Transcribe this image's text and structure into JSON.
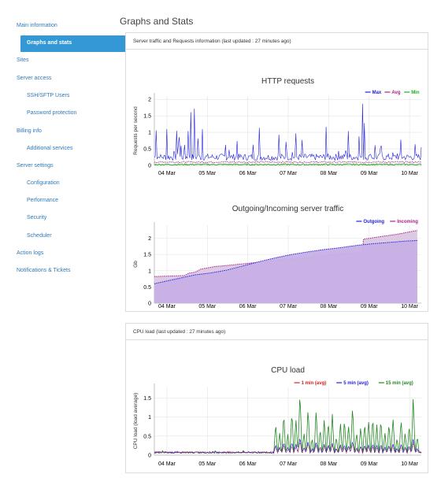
{
  "sidebar": {
    "items": [
      {
        "label": "Main information",
        "level": 0
      },
      {
        "label": "Graphs and stats",
        "level": 1,
        "active": true
      },
      {
        "label": "Sites",
        "level": 0
      },
      {
        "label": "Server access",
        "level": 0
      },
      {
        "label": "SSH/SFTP Users",
        "level": 1
      },
      {
        "label": "Password protection",
        "level": 1
      },
      {
        "label": "Billing info",
        "level": 0
      },
      {
        "label": "Additional services",
        "level": 1
      },
      {
        "label": "Server settings",
        "level": 0
      },
      {
        "label": "Configuration",
        "level": 1
      },
      {
        "label": "Performance",
        "level": 1
      },
      {
        "label": "Security",
        "level": 1
      },
      {
        "label": "Scheduler",
        "level": 1
      },
      {
        "label": "Action logs",
        "level": 0
      },
      {
        "label": "Notifications & Tickets",
        "level": 0
      }
    ]
  },
  "page": {
    "title": "Graphs and Stats"
  },
  "panels": {
    "traffic": {
      "heading": "Server traffic and Requests information",
      "updated": "(last updated : 27 minutes ago)"
    },
    "cpu": {
      "heading": "CPU load",
      "updated": "(last updated : 27 minutes ago)"
    }
  },
  "colors": {
    "accent": "#3598d6",
    "link": "#2f79b9",
    "max": "#2222dd",
    "avg": "#aa2288",
    "min": "#22aa22",
    "outgoing": "#2222dd",
    "incoming": "#aa2288",
    "cpu1": "#dd2222",
    "cpu5": "#2222dd",
    "cpu15": "#228822"
  },
  "chart_data": [
    {
      "type": "line",
      "title": "HTTP requests",
      "ylabel": "Requests per second",
      "xlabel": "",
      "x_ticks": [
        "04 Mar",
        "05 Mar",
        "06 Mar",
        "07 Mar",
        "08 Mar",
        "09 Mar",
        "10 Mar"
      ],
      "x_range": [
        "03 Mar 16:00",
        "10 Mar 19:00"
      ],
      "ylim": [
        0,
        2.1
      ],
      "y_ticks": [
        0,
        0.5,
        1,
        1.5,
        2
      ],
      "grid": true,
      "legend": "top-right",
      "series": [
        {
          "name": "Max",
          "color": "#2222dd",
          "baseline": 0.25,
          "spikes": [
            [
              0.05,
              1.3
            ],
            [
              0.14,
              0.55
            ],
            [
              0.25,
              0.5
            ],
            [
              0.31,
              1.18
            ],
            [
              0.41,
              0.48
            ],
            [
              0.48,
              0.6
            ],
            [
              0.55,
              1.05
            ],
            [
              0.59,
              0.8
            ],
            [
              0.61,
              1.1
            ],
            [
              0.66,
              0.6
            ],
            [
              0.75,
              0.7
            ],
            [
              0.84,
              1.2
            ],
            [
              0.87,
              0.5
            ],
            [
              0.91,
              1.93
            ],
            [
              0.99,
              1.72
            ],
            [
              1.08,
              0.9
            ],
            [
              1.19,
              1.18
            ],
            [
              1.33,
              0.55
            ],
            [
              1.53,
              0.58
            ],
            [
              1.75,
              1.02
            ],
            [
              1.85,
              0.55
            ],
            [
              2.05,
              0.9
            ],
            [
              2.45,
              0.95
            ],
            [
              2.6,
              1.3
            ],
            [
              3.09,
              1.33
            ],
            [
              3.25,
              0.95
            ],
            [
              3.4,
              0.8
            ],
            [
              3.5,
              1.05
            ],
            [
              3.65,
              0.85
            ],
            [
              4.15,
              0.5
            ],
            [
              4.25,
              1.33
            ],
            [
              4.55,
              0.6
            ],
            [
              4.74,
              0.85
            ],
            [
              4.8,
              1.2
            ],
            [
              5.05,
              1.28
            ],
            [
              5.15,
              1.95
            ],
            [
              5.2,
              1.6
            ],
            [
              5.35,
              0.5
            ],
            [
              5.45,
              0.85
            ],
            [
              5.6,
              1.0
            ],
            [
              5.75,
              0.6
            ],
            [
              5.9,
              0.55
            ],
            [
              6.0,
              0.6
            ],
            [
              6.1,
              1.02
            ],
            [
              6.28,
              0.4
            ],
            [
              6.45,
              0.8
            ],
            [
              6.6,
              0.55
            ]
          ]
        },
        {
          "name": "Avg",
          "color": "#aa2288",
          "baseline": 0.1
        },
        {
          "name": "Min",
          "color": "#22aa22",
          "baseline": 0.03
        }
      ]
    },
    {
      "type": "area",
      "title": "Outgoing/Incoming server traffic",
      "ylabel": "Gb",
      "xlabel": "",
      "x_ticks": [
        "04 Mar",
        "05 Mar",
        "06 Mar",
        "07 Mar",
        "08 Mar",
        "09 Mar",
        "10 Mar"
      ],
      "x_range": [
        "03 Mar 16:00",
        "10 Mar 19:00"
      ],
      "ylim": [
        0,
        2.4
      ],
      "y_ticks": [
        0,
        0.5,
        1,
        1.5,
        2
      ],
      "grid": true,
      "legend": "top-right",
      "series": [
        {
          "name": "Outgoing",
          "color": "#2222dd",
          "points": [
            [
              0.0,
              0.6
            ],
            [
              0.3,
              0.68
            ],
            [
              0.6,
              0.76
            ],
            [
              1.0,
              0.87
            ],
            [
              1.4,
              0.93
            ],
            [
              1.8,
              1.02
            ],
            [
              2.2,
              1.15
            ],
            [
              2.6,
              1.28
            ],
            [
              3.0,
              1.4
            ],
            [
              3.4,
              1.5
            ],
            [
              3.8,
              1.58
            ],
            [
              4.2,
              1.65
            ],
            [
              4.6,
              1.71
            ],
            [
              5.0,
              1.78
            ],
            [
              5.4,
              1.83
            ],
            [
              5.8,
              1.87
            ],
            [
              6.2,
              1.91
            ],
            [
              6.5,
              1.93
            ]
          ]
        },
        {
          "name": "Incoming",
          "color": "#aa2288",
          "points": [
            [
              0.0,
              0.82
            ],
            [
              0.75,
              0.85
            ],
            [
              0.85,
              0.92
            ],
            [
              1.0,
              0.95
            ],
            [
              1.15,
              1.05
            ],
            [
              1.3,
              1.08
            ],
            [
              1.5,
              1.13
            ],
            [
              1.7,
              1.15
            ],
            [
              2.5,
              1.25
            ],
            [
              3.3,
              1.35
            ],
            [
              4.2,
              1.45
            ],
            [
              4.5,
              1.5
            ],
            [
              5.0,
              1.55
            ],
            [
              5.14,
              1.56
            ],
            [
              5.17,
              1.97
            ],
            [
              5.6,
              2.05
            ],
            [
              6.0,
              2.12
            ],
            [
              6.5,
              2.24
            ]
          ]
        }
      ]
    },
    {
      "type": "line",
      "title": "CPU load",
      "ylabel": "CPU load (load average)",
      "xlabel": "",
      "x_ticks": [
        "04 Mar",
        "05 Mar",
        "06 Mar",
        "07 Mar",
        "08 Mar",
        "09 Mar",
        "10 Mar"
      ],
      "x_range": [
        "03 Mar 16:00",
        "10 Mar 19:00"
      ],
      "ylim": [
        0,
        1.8
      ],
      "y_ticks": [
        0,
        0.5,
        1,
        1.5
      ],
      "grid": true,
      "legend": "top-right",
      "series": [
        {
          "name": "1 min (avg)",
          "color": "#dd2222"
        },
        {
          "name": "5 min (avg)",
          "color": "#2222dd"
        },
        {
          "name": "15 min (avg)",
          "color": "#228822",
          "baseline": 0.05,
          "spikes": [
            [
              0.05,
              0.1
            ],
            [
              0.2,
              0.12
            ],
            [
              0.4,
              0.08
            ],
            [
              0.7,
              0.1
            ],
            [
              1.2,
              0.1
            ],
            [
              1.5,
              0.12
            ],
            [
              1.8,
              0.08
            ],
            [
              2.2,
              0.12
            ],
            [
              2.5,
              0.1
            ],
            [
              2.8,
              0.08
            ],
            [
              3.0,
              0.85
            ],
            [
              3.1,
              0.6
            ],
            [
              3.2,
              1.1
            ],
            [
              3.3,
              0.55
            ],
            [
              3.4,
              1.15
            ],
            [
              3.5,
              0.95
            ],
            [
              3.6,
              1.68
            ],
            [
              3.7,
              0.6
            ],
            [
              3.8,
              1.25
            ],
            [
              3.9,
              0.45
            ],
            [
              4.0,
              1.2
            ],
            [
              4.1,
              0.7
            ],
            [
              4.2,
              0.95
            ],
            [
              4.3,
              0.9
            ],
            [
              4.4,
              1.08
            ],
            [
              4.5,
              0.5
            ],
            [
              4.6,
              0.85
            ],
            [
              4.7,
              0.95
            ],
            [
              4.8,
              0.8
            ],
            [
              4.9,
              1.3
            ],
            [
              5.0,
              0.6
            ],
            [
              5.1,
              0.75
            ],
            [
              5.2,
              0.85
            ],
            [
              5.3,
              0.9
            ],
            [
              5.4,
              1.0
            ],
            [
              5.5,
              0.8
            ],
            [
              5.6,
              0.95
            ],
            [
              5.7,
              0.6
            ],
            [
              5.8,
              0.85
            ],
            [
              5.9,
              1.0
            ],
            [
              6.0,
              0.45
            ],
            [
              6.1,
              0.95
            ],
            [
              6.2,
              0.6
            ],
            [
              6.3,
              0.8
            ],
            [
              6.4,
              1.52
            ],
            [
              6.5,
              0.5
            ]
          ]
        }
      ]
    }
  ]
}
